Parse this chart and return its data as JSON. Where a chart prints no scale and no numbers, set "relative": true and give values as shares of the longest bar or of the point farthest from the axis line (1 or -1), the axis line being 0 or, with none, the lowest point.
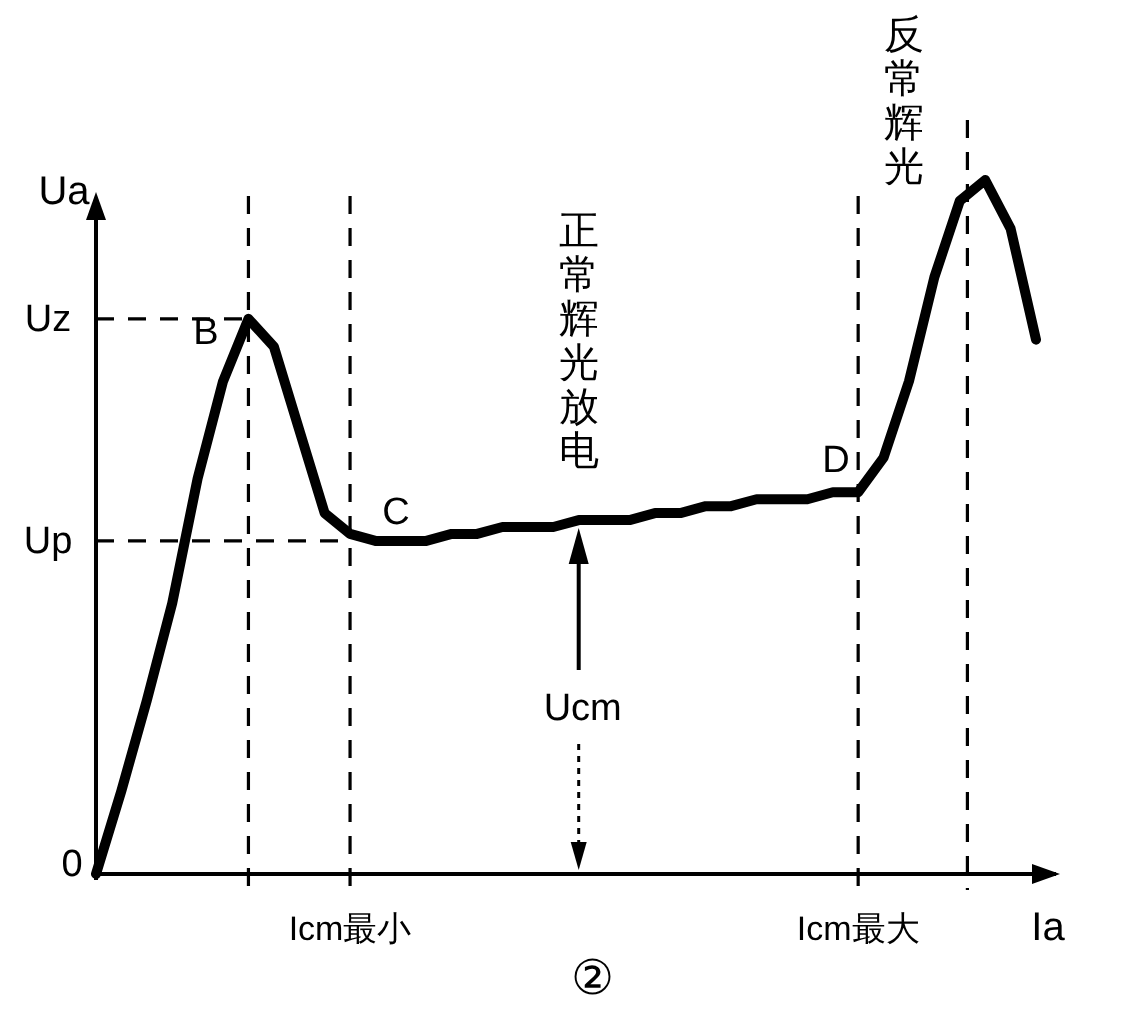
{
  "chart_data": {
    "type": "line",
    "relative": true,
    "xlabel": "Ia",
    "ylabel": "Ua",
    "categories": [
      null,
      null,
      null,
      null,
      null,
      null,
      null,
      null,
      null,
      null,
      "Icm最小",
      null,
      null,
      null,
      null,
      null,
      null,
      null,
      null,
      null,
      null,
      null,
      null,
      null,
      null,
      null,
      null,
      null,
      null,
      null,
      "Icm最大",
      null,
      null,
      null,
      null,
      null,
      null,
      null
    ],
    "series": [
      {
        "color": "#000000",
        "values": [
          0,
          0.12,
          0.25,
          0.39,
          0.57,
          0.71,
          0.8,
          0.76,
          0.64,
          0.52,
          0.49,
          0.48,
          0.48,
          0.48,
          0.49,
          0.49,
          0.5,
          0.5,
          0.5,
          0.51,
          0.51,
          0.51,
          0.52,
          0.52,
          0.53,
          0.53,
          0.54,
          0.54,
          0.54,
          0.55,
          0.55,
          0.6,
          0.71,
          0.86,
          0.97,
          1,
          0.93,
          0.77
        ]
      }
    ],
    "ref_lines": [
      {
        "axis": "y",
        "value": 0.8,
        "label": "Uz",
        "line_style": "dashed"
      },
      {
        "axis": "y",
        "value": 0.48,
        "label": "Up",
        "line_style": "dashed"
      }
    ],
    "grid": "x",
    "annotations": [
      "0",
      "B",
      "C",
      "D",
      "正常辉光放电",
      "反常辉光",
      "Ucm",
      "②"
    ]
  }
}
